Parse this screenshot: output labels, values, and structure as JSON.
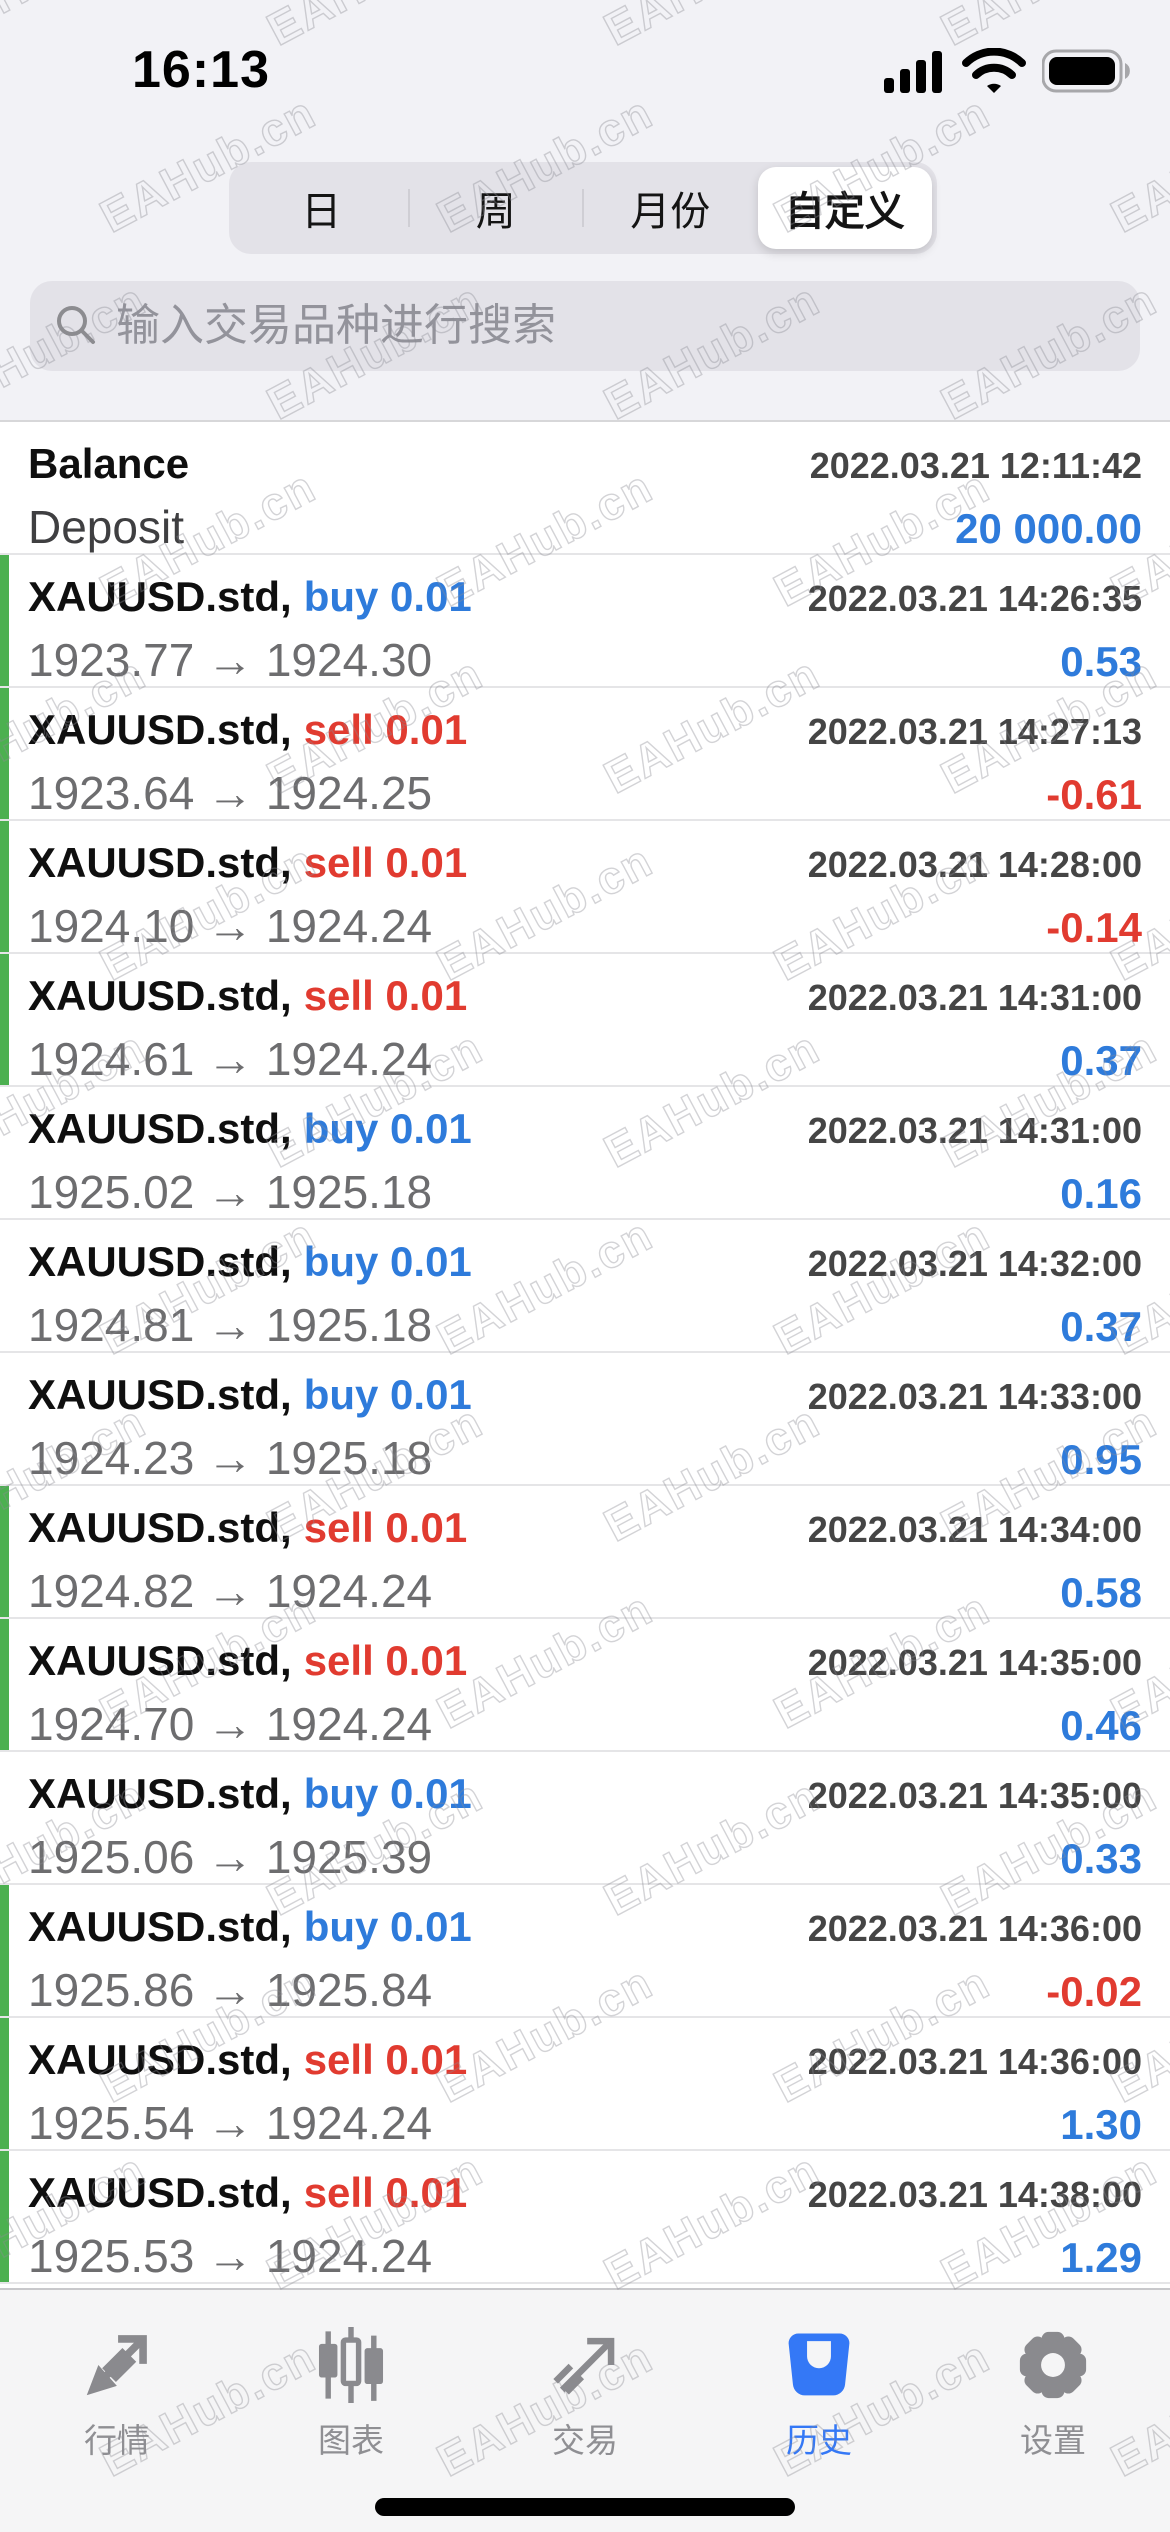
{
  "status_bar": {
    "time": "16:13",
    "icons": [
      "cellular-signal",
      "wifi",
      "battery"
    ]
  },
  "period_tabs": {
    "options": [
      "日",
      "周",
      "月份",
      "自定义"
    ],
    "selected_index": 3
  },
  "search": {
    "placeholder": "输入交易品种进行搜索"
  },
  "history_list": {
    "arrow": "→",
    "balance": {
      "title": "Balance",
      "datetime": "2022.03.21 12:11:42",
      "entry_label": "Deposit",
      "amount": "20 000.00"
    },
    "trades": [
      {
        "symbol": "XAUUSD.std,",
        "side": "buy",
        "side_label": "buy 0.01",
        "datetime": "2022.03.21 14:26:35",
        "open": "1923.77",
        "close": "1924.30",
        "profit": "0.53",
        "highlight_bar": true
      },
      {
        "symbol": "XAUUSD.std,",
        "side": "sell",
        "side_label": "sell 0.01",
        "datetime": "2022.03.21 14:27:13",
        "open": "1923.64",
        "close": "1924.25",
        "profit": "-0.61",
        "highlight_bar": true
      },
      {
        "symbol": "XAUUSD.std,",
        "side": "sell",
        "side_label": "sell 0.01",
        "datetime": "2022.03.21 14:28:00",
        "open": "1924.10",
        "close": "1924.24",
        "profit": "-0.14",
        "highlight_bar": true
      },
      {
        "symbol": "XAUUSD.std,",
        "side": "sell",
        "side_label": "sell 0.01",
        "datetime": "2022.03.21 14:31:00",
        "open": "1924.61",
        "close": "1924.24",
        "profit": "0.37",
        "highlight_bar": true
      },
      {
        "symbol": "XAUUSD.std,",
        "side": "buy",
        "side_label": "buy 0.01",
        "datetime": "2022.03.21 14:31:00",
        "open": "1925.02",
        "close": "1925.18",
        "profit": "0.16",
        "highlight_bar": false
      },
      {
        "symbol": "XAUUSD.std,",
        "side": "buy",
        "side_label": "buy 0.01",
        "datetime": "2022.03.21 14:32:00",
        "open": "1924.81",
        "close": "1925.18",
        "profit": "0.37",
        "highlight_bar": false
      },
      {
        "symbol": "XAUUSD.std,",
        "side": "buy",
        "side_label": "buy 0.01",
        "datetime": "2022.03.21 14:33:00",
        "open": "1924.23",
        "close": "1925.18",
        "profit": "0.95",
        "highlight_bar": false
      },
      {
        "symbol": "XAUUSD.std,",
        "side": "sell",
        "side_label": "sell 0.01",
        "datetime": "2022.03.21 14:34:00",
        "open": "1924.82",
        "close": "1924.24",
        "profit": "0.58",
        "highlight_bar": true
      },
      {
        "symbol": "XAUUSD.std,",
        "side": "sell",
        "side_label": "sell 0.01",
        "datetime": "2022.03.21 14:35:00",
        "open": "1924.70",
        "close": "1924.24",
        "profit": "0.46",
        "highlight_bar": true
      },
      {
        "symbol": "XAUUSD.std,",
        "side": "buy",
        "side_label": "buy 0.01",
        "datetime": "2022.03.21 14:35:00",
        "open": "1925.06",
        "close": "1925.39",
        "profit": "0.33",
        "highlight_bar": false
      },
      {
        "symbol": "XAUUSD.std,",
        "side": "buy",
        "side_label": "buy 0.01",
        "datetime": "2022.03.21 14:36:00",
        "open": "1925.86",
        "close": "1925.84",
        "profit": "-0.02",
        "highlight_bar": true
      },
      {
        "symbol": "XAUUSD.std,",
        "side": "sell",
        "side_label": "sell 0.01",
        "datetime": "2022.03.21 14:36:00",
        "open": "1925.54",
        "close": "1924.24",
        "profit": "1.30",
        "highlight_bar": true
      },
      {
        "symbol": "XAUUSD.std,",
        "side": "sell",
        "side_label": "sell 0.01",
        "datetime": "2022.03.21 14:38:00",
        "open": "1925.53",
        "close": "1924.24",
        "profit": "1.29",
        "highlight_bar": true
      }
    ]
  },
  "tab_bar": {
    "items": [
      {
        "id": "quotes",
        "label": "行情"
      },
      {
        "id": "charts",
        "label": "图表"
      },
      {
        "id": "trade",
        "label": "交易"
      },
      {
        "id": "history",
        "label": "历史"
      },
      {
        "id": "settings",
        "label": "设置"
      }
    ],
    "active_id": "history"
  },
  "watermark": {
    "text": "EAHub.cn"
  },
  "colors": {
    "buy_blue": "#2e7bdb",
    "sell_red": "#e13b30",
    "profit_positive": "#2e7bdb",
    "profit_negative": "#e13b30",
    "position_bar_green": "#4cb050",
    "tab_active_blue": "#3478f6"
  }
}
